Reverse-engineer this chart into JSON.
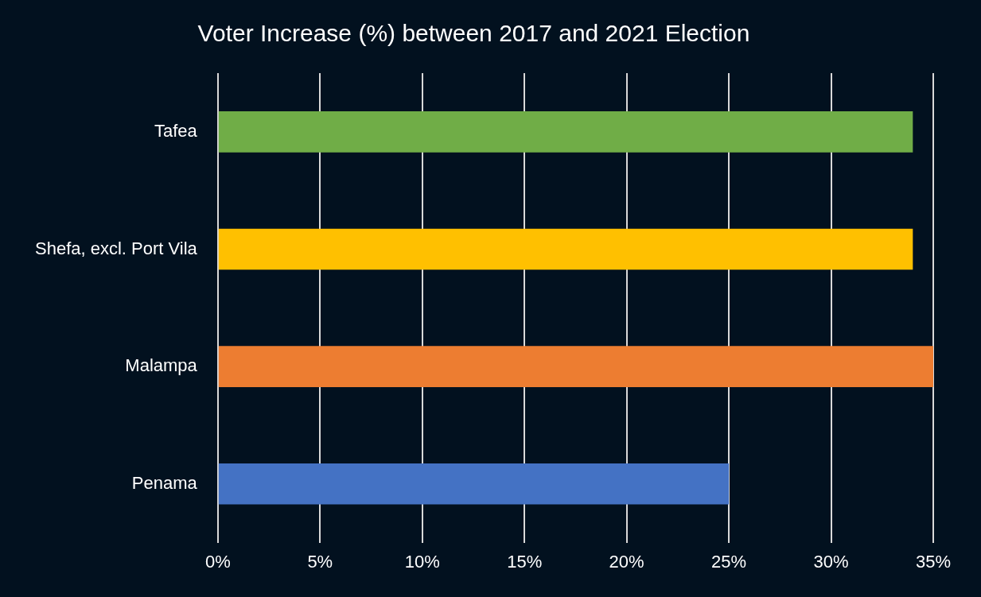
{
  "chart_data": {
    "type": "bar",
    "orientation": "horizontal",
    "title": "Voter Increase (%) between 2017 and 2021 Election",
    "categories": [
      "Tafea",
      "Shefa, excl. Port Vila",
      "Malampa",
      "Penama"
    ],
    "values": [
      34,
      34,
      35,
      25
    ],
    "colors": [
      "#70ad47",
      "#ffc000",
      "#ed7d31",
      "#4472c4"
    ],
    "xlim": [
      0,
      35
    ],
    "xticks": [
      {
        "value": 0,
        "label": "0%"
      },
      {
        "value": 5,
        "label": "5%"
      },
      {
        "value": 10,
        "label": "10%"
      },
      {
        "value": 15,
        "label": "15%"
      },
      {
        "value": 20,
        "label": "20%"
      },
      {
        "value": 25,
        "label": "25%"
      },
      {
        "value": 30,
        "label": "30%"
      },
      {
        "value": 35,
        "label": "35%"
      }
    ],
    "grid": "x",
    "legend": false
  }
}
